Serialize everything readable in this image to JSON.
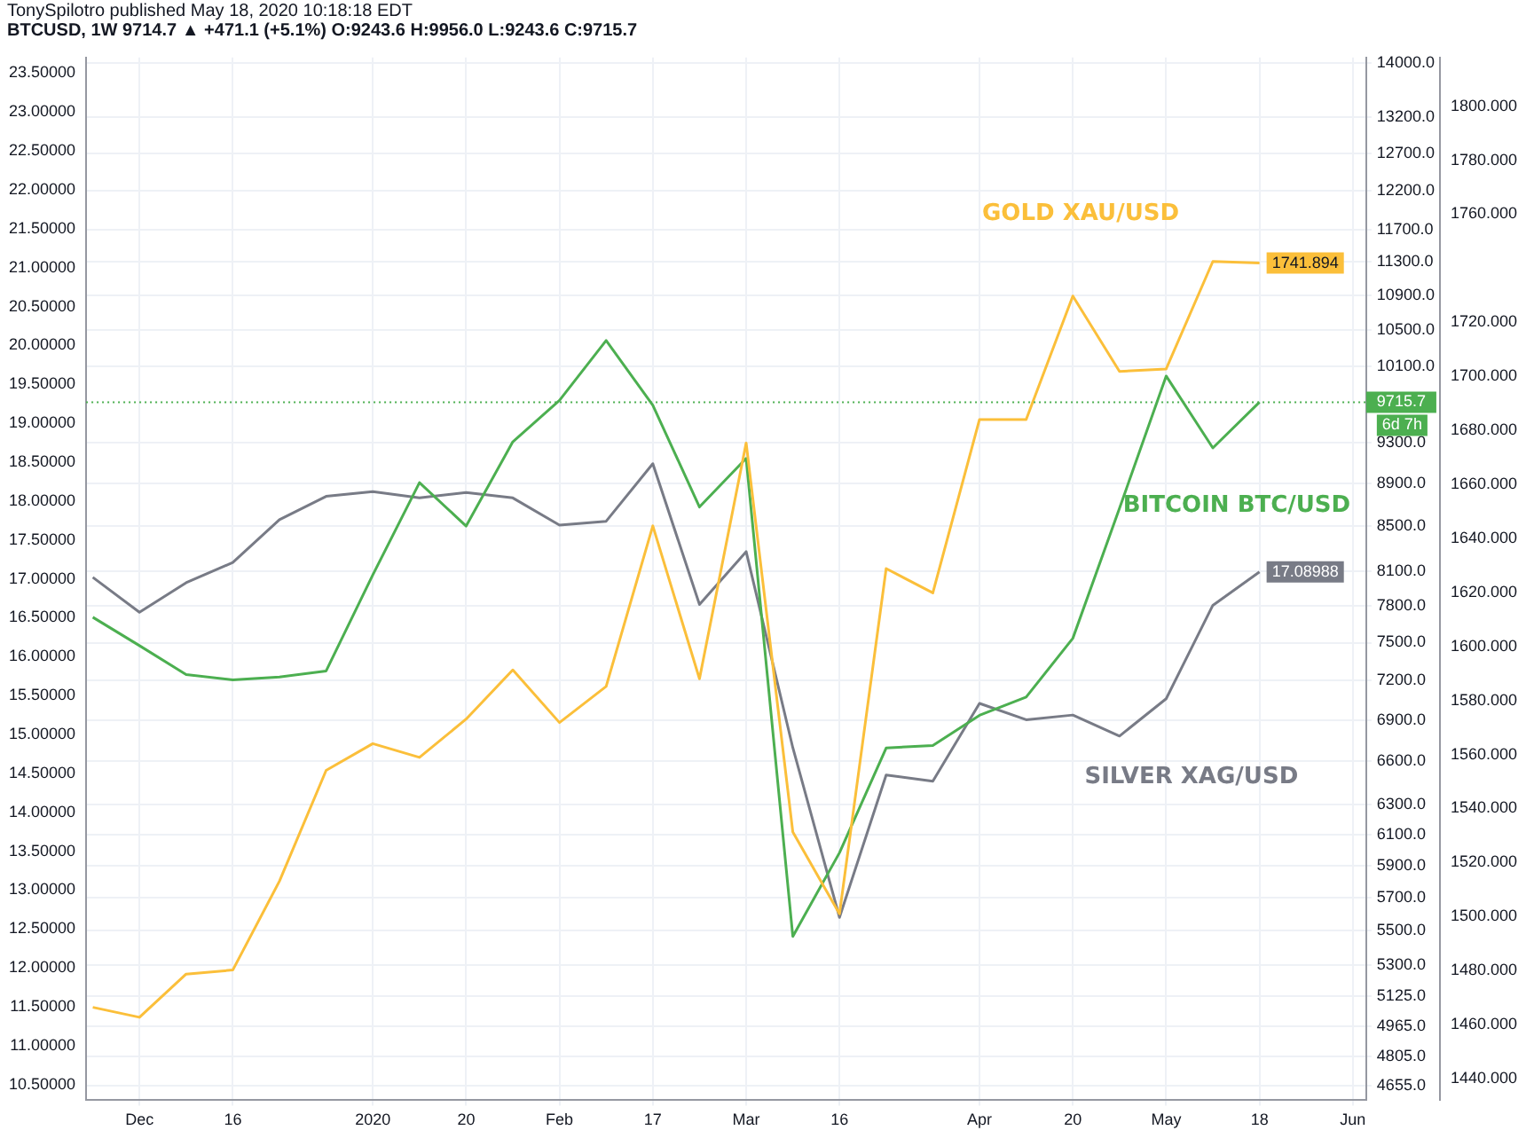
{
  "chart_data": {
    "type": "line",
    "title": "TonySpilotro published May 18, 2020 10:18:18 EDT",
    "subtitle": "BTCUSD, 1W 9714.7 ▲ +471.1 (+5.1%) O:9243.6 H:9956.0 L:9243.6 C:9715.7",
    "x": [
      "2019-11-25",
      "2019-12-02",
      "2019-12-09",
      "2019-12-16",
      "2019-12-23",
      "2019-12-30",
      "2020-01-06",
      "2020-01-13",
      "2020-01-20",
      "2020-01-27",
      "2020-02-03",
      "2020-02-10",
      "2020-02-17",
      "2020-02-24",
      "2020-03-02",
      "2020-03-09",
      "2020-03-16",
      "2020-03-23",
      "2020-03-30",
      "2020-04-06",
      "2020-04-13",
      "2020-04-20",
      "2020-04-27",
      "2020-05-04",
      "2020-05-11",
      "2020-05-18"
    ],
    "xlim": [
      "2019-11-24",
      "2020-06-03"
    ],
    "xticks": [
      {
        "value": "2019-12-02",
        "label": "Dec"
      },
      {
        "value": "2019-12-16",
        "label": "16"
      },
      {
        "value": "2020-01-06",
        "label": "2020"
      },
      {
        "value": "2020-01-20",
        "label": "20"
      },
      {
        "value": "2020-02-03",
        "label": "Feb"
      },
      {
        "value": "2020-02-17",
        "label": "17"
      },
      {
        "value": "2020-03-02",
        "label": "Mar"
      },
      {
        "value": "2020-03-16",
        "label": "16"
      },
      {
        "value": "2020-04-06",
        "label": "Apr"
      },
      {
        "value": "2020-04-20",
        "label": "20"
      },
      {
        "value": "2020-05-04",
        "label": "May"
      },
      {
        "value": "2020-05-18",
        "label": "18"
      },
      {
        "value": "2020-06-01",
        "label": "Jun"
      }
    ],
    "series": [
      {
        "name": "GOLD XAU/USD",
        "color": "#fbbf3a",
        "axis": "y3",
        "values": [
          1466.4,
          1462.7,
          1478.7,
          1480.2,
          1513.1,
          1554.1,
          1564.0,
          1558.9,
          1573.1,
          1591.3,
          1571.8,
          1585.2,
          1644.6,
          1588.0,
          1675.3,
          1531.3,
          1501.0,
          1628.8,
          1619.8,
          1684.0,
          1684.0,
          1729.7,
          1701.8,
          1702.7,
          1742.5,
          1741.894
        ],
        "value_labels": [
          null,
          null,
          null,
          null,
          null,
          null,
          null,
          null,
          null,
          null,
          null,
          null,
          null,
          null,
          null,
          null,
          null,
          null,
          null,
          null,
          null,
          null,
          null,
          null,
          null,
          "1741.894"
        ]
      },
      {
        "name": "BITCOIN BTC/USD",
        "color": "#4caf50",
        "axis": "y2",
        "values": [
          7708,
          7476,
          7247,
          7205,
          7228,
          7275,
          8067,
          8909,
          8503,
          9310,
          9734,
          10382,
          9684,
          8679,
          9145,
          5467,
          5982,
          6696,
          6714,
          6936,
          7073,
          7535,
          8667,
          9993,
          9249,
          9715.7
        ]
      },
      {
        "name": "SILVER XAG/USD",
        "color": "#787b86",
        "values": [
          17.02,
          16.57,
          16.95,
          17.21,
          17.76,
          18.06,
          18.12,
          18.04,
          18.11,
          18.04,
          17.69,
          17.74,
          18.48,
          16.67,
          17.35,
          14.83,
          12.65,
          14.48,
          14.4,
          15.4,
          15.19,
          15.25,
          14.98,
          15.46,
          16.66,
          17.08988
        ],
        "value_labels": [
          null,
          null,
          null,
          null,
          null,
          null,
          null,
          null,
          null,
          null,
          null,
          null,
          null,
          null,
          null,
          null,
          null,
          null,
          null,
          null,
          null,
          null,
          null,
          null,
          null,
          "17.08988"
        ]
      }
    ],
    "ylim": [
      10.3,
      23.7
    ],
    "yticks": [
      {
        "value": 10.5,
        "label": "10.50000"
      },
      {
        "value": 11,
        "label": "11.00000"
      },
      {
        "value": 11.5,
        "label": "11.50000"
      },
      {
        "value": 12,
        "label": "12.00000"
      },
      {
        "value": 12.5,
        "label": "12.50000"
      },
      {
        "value": 13,
        "label": "13.00000"
      },
      {
        "value": 13.5,
        "label": "13.50000"
      },
      {
        "value": 14,
        "label": "14.00000"
      },
      {
        "value": 14.5,
        "label": "14.50000"
      },
      {
        "value": 15,
        "label": "15.00000"
      },
      {
        "value": 15.5,
        "label": "15.50000"
      },
      {
        "value": 16,
        "label": "16.00000"
      },
      {
        "value": 16.5,
        "label": "16.50000"
      },
      {
        "value": 17,
        "label": "17.00000"
      },
      {
        "value": 17.5,
        "label": "17.50000"
      },
      {
        "value": 18,
        "label": "18.00000"
      },
      {
        "value": 18.5,
        "label": "18.50000"
      },
      {
        "value": 19,
        "label": "19.00000"
      },
      {
        "value": 19.5,
        "label": "19.50000"
      },
      {
        "value": 20,
        "label": "20.00000"
      },
      {
        "value": 20.5,
        "label": "20.50000"
      },
      {
        "value": 21,
        "label": "21.00000"
      },
      {
        "value": 21.5,
        "label": "21.50000"
      },
      {
        "value": 22,
        "label": "22.00000"
      },
      {
        "value": 22.5,
        "label": "22.50000"
      },
      {
        "value": 23,
        "label": "23.00000"
      },
      {
        "value": 23.5,
        "label": "23.50000"
      }
    ],
    "y2lim": [
      4583,
      14080
    ],
    "y2ticks": [
      {
        "value": 4655,
        "label": "4655.0"
      },
      {
        "value": 4805,
        "label": "4805.0"
      },
      {
        "value": 4965,
        "label": "4965.0"
      },
      {
        "value": 5125,
        "label": "5125.0"
      },
      {
        "value": 5300,
        "label": "5300.0"
      },
      {
        "value": 5500,
        "label": "5500.0"
      },
      {
        "value": 5700,
        "label": "5700.0"
      },
      {
        "value": 5900,
        "label": "5900.0"
      },
      {
        "value": 6100,
        "label": "6100.0"
      },
      {
        "value": 6300,
        "label": "6300.0"
      },
      {
        "value": 6600,
        "label": "6600.0"
      },
      {
        "value": 6900,
        "label": "6900.0"
      },
      {
        "value": 7200,
        "label": "7200.0"
      },
      {
        "value": 7500,
        "label": "7500.0"
      },
      {
        "value": 7800,
        "label": "7800.0"
      },
      {
        "value": 8100,
        "label": "8100.0"
      },
      {
        "value": 8500,
        "label": "8500.0"
      },
      {
        "value": 8900,
        "label": "8900.0"
      },
      {
        "value": 9300,
        "label": "9300.0"
      },
      {
        "value": 10100,
        "label": "10100.0"
      },
      {
        "value": 10500,
        "label": "10500.0"
      },
      {
        "value": 10900,
        "label": "10900.0"
      },
      {
        "value": 11300,
        "label": "11300.0"
      },
      {
        "value": 11700,
        "label": "11700.0"
      },
      {
        "value": 12200,
        "label": "12200.0"
      },
      {
        "value": 12700,
        "label": "12700.0"
      },
      {
        "value": 13200,
        "label": "13200.0"
      },
      {
        "value": 14000,
        "label": "14000.0"
      }
    ],
    "y3lim": [
      1432,
      1818
    ],
    "y3ticks": [
      {
        "value": 1440,
        "label": "1440.000"
      },
      {
        "value": 1460,
        "label": "1460.000"
      },
      {
        "value": 1480,
        "label": "1480.000"
      },
      {
        "value": 1500,
        "label": "1500.000"
      },
      {
        "value": 1520,
        "label": "1520.000"
      },
      {
        "value": 1540,
        "label": "1540.000"
      },
      {
        "value": 1560,
        "label": "1560.000"
      },
      {
        "value": 1580,
        "label": "1580.000"
      },
      {
        "value": 1600,
        "label": "1600.000"
      },
      {
        "value": 1620,
        "label": "1620.000"
      },
      {
        "value": 1640,
        "label": "1640.000"
      },
      {
        "value": 1660,
        "label": "1660.000"
      },
      {
        "value": 1680,
        "label": "1680.000"
      },
      {
        "value": 1700,
        "label": "1700.000"
      },
      {
        "value": 1720,
        "label": "1720.000"
      },
      {
        "value": 1760,
        "label": "1760.000"
      },
      {
        "value": 1780,
        "label": "1780.000"
      },
      {
        "value": 1800,
        "label": "1800.000"
      }
    ],
    "log": "y2",
    "grid": true,
    "legend": false,
    "marker": "none",
    "line_style": "solid",
    "ref_lines": [
      {
        "axis": "y2",
        "value": 9715.7,
        "label": "9715.7",
        "color": "#4caf50",
        "line_style": "dotted"
      }
    ],
    "annotations": [
      "6d 7h"
    ]
  }
}
